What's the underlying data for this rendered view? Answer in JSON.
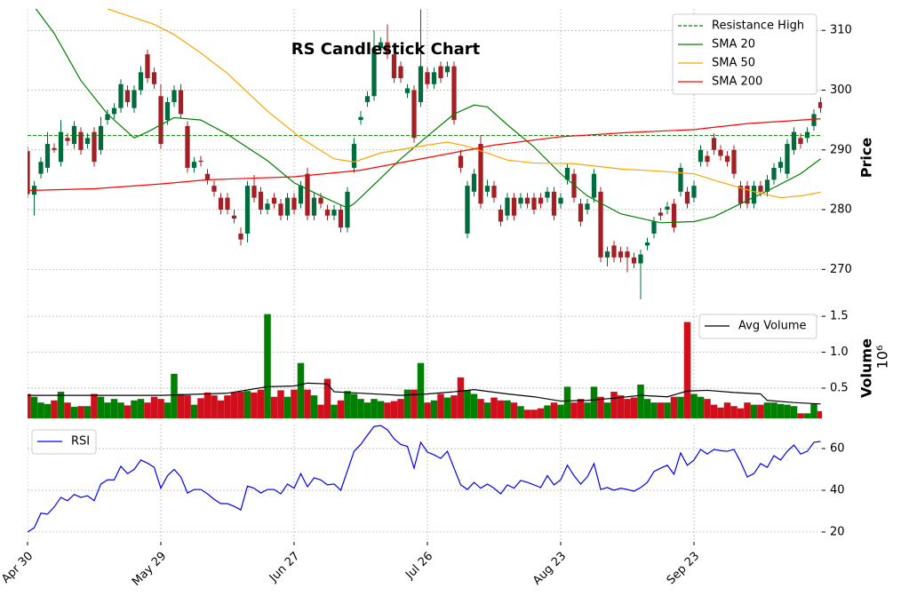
{
  "chart_data": [
    {
      "type": "candlestick",
      "title": "RS Candlestick Chart",
      "ylabel": "Price",
      "xlim": [
        0,
        119.2
      ],
      "ylim": [
        263.8,
        313.6
      ],
      "yticks": [
        270,
        280,
        290,
        300,
        310
      ],
      "grid": true,
      "legend": "upper right",
      "up_color": "#006b3c",
      "down_color": "#a31f24",
      "open": [
        289.8,
        282.5,
        286,
        287,
        290.3,
        288,
        292,
        291,
        293,
        291,
        293,
        290,
        295,
        296,
        297,
        300,
        297,
        300,
        306,
        303,
        299,
        295,
        298,
        300,
        294,
        287,
        288.2,
        286,
        284,
        282,
        282,
        279,
        276,
        276,
        284,
        283,
        280,
        282,
        281,
        279,
        282,
        281,
        286,
        279,
        282,
        280,
        279,
        280,
        277,
        287,
        295,
        298,
        299,
        307,
        308,
        306,
        304,
        299.5,
        300,
        298,
        303,
        301,
        304,
        303,
        304,
        289,
        276,
        283,
        291,
        283,
        284,
        280,
        279,
        282,
        281,
        282,
        282,
        282,
        282,
        283,
        281,
        285,
        286,
        281,
        280,
        282,
        283,
        272,
        274,
        273,
        273,
        272,
        271,
        274,
        276,
        279.5,
        280,
        281,
        283,
        283,
        282,
        288,
        289,
        292,
        290,
        289,
        290,
        284,
        284,
        281,
        284,
        283,
        285,
        287,
        286,
        290,
        292,
        292,
        294,
        298
      ],
      "high": [
        290.6,
        284.8,
        288.8,
        293,
        291.1,
        295,
        292.8,
        294.8,
        293.8,
        292.8,
        293.8,
        295.5,
        296.8,
        297.8,
        301.8,
        300.8,
        300.8,
        304,
        306.8,
        303.8,
        301,
        298.8,
        300.8,
        301,
        294.8,
        288.8,
        289,
        286.8,
        284.8,
        282.8,
        282.8,
        280,
        277,
        284.8,
        285.8,
        283.8,
        281.8,
        282.8,
        281.8,
        282.8,
        282.8,
        284.8,
        287,
        282.8,
        282.8,
        280.8,
        280.8,
        280.8,
        283.8,
        292,
        296.5,
        299.8,
        310,
        308.8,
        311,
        306.8,
        304.8,
        301,
        300.8,
        313.5,
        303.8,
        303.8,
        304.8,
        304.8,
        304.8,
        290,
        284.8,
        286.8,
        292.5,
        285,
        284.8,
        280.8,
        282.8,
        282.8,
        282.8,
        282.8,
        282.8,
        282.8,
        283.8,
        283.8,
        282.8,
        287.8,
        286.8,
        281.8,
        281.8,
        286.8,
        283.8,
        273.8,
        274.8,
        273.8,
        273.8,
        272.8,
        273.3,
        275.3,
        278.8,
        280.3,
        281.3,
        281.8,
        287.8,
        283.8,
        284.8,
        290.8,
        289.8,
        292.8,
        290.8,
        289.8,
        290.8,
        284.8,
        284.8,
        284.8,
        284.8,
        285.8,
        287.8,
        288.8,
        291.8,
        293.8,
        292.8,
        293.8,
        296.8,
        298.8
      ],
      "low": [
        282,
        279,
        285.2,
        286.2,
        289.5,
        287.2,
        290.7,
        290.2,
        289.2,
        290.2,
        287.2,
        289.2,
        294.2,
        295.2,
        296.2,
        297.2,
        296.2,
        299.2,
        301.2,
        300.2,
        290.2,
        294.2,
        297.2,
        295.2,
        286.2,
        286.2,
        287.2,
        284.2,
        282.2,
        279.2,
        279.2,
        277.7,
        274,
        274.5,
        281.2,
        279.2,
        279.2,
        280.2,
        278.2,
        278.2,
        279.2,
        280.2,
        278.2,
        278.2,
        280.2,
        278.2,
        278.2,
        276.2,
        276.2,
        286.2,
        294.2,
        297.2,
        298.2,
        306.2,
        305.2,
        301.2,
        301.2,
        298.7,
        291.2,
        297.2,
        300.2,
        300.2,
        301.2,
        302.2,
        294.2,
        286.2,
        275.2,
        282.2,
        280.2,
        282.2,
        281.2,
        277.2,
        278.2,
        278.2,
        280.2,
        280.2,
        279.2,
        280.2,
        281.2,
        278.2,
        280.2,
        284.2,
        281.2,
        277.2,
        279.2,
        281.2,
        271.2,
        270.5,
        271.2,
        271.2,
        269.5,
        270.2,
        265,
        273.2,
        275.2,
        278.2,
        279.2,
        276.2,
        282.2,
        280.2,
        281.2,
        287.2,
        287.2,
        289.2,
        288.2,
        287.2,
        285.2,
        280.2,
        280.2,
        280.2,
        282.2,
        282.2,
        284.2,
        286.2,
        285.2,
        289.2,
        290.2,
        291.2,
        293.2,
        296.2
      ],
      "close": [
        282.6,
        284,
        288,
        291,
        290,
        293,
        291.5,
        294,
        290,
        292,
        288,
        294,
        296,
        297,
        301,
        298,
        300,
        303,
        302,
        301,
        291,
        298,
        300,
        296,
        287,
        288,
        288,
        285,
        283,
        280,
        280,
        278.5,
        275,
        284,
        282,
        280,
        281,
        281,
        279,
        282,
        280,
        284,
        279,
        282,
        281,
        279,
        280,
        277,
        283,
        291,
        295.5,
        299,
        307,
        308,
        306,
        302,
        302,
        300.3,
        292,
        304,
        301,
        303,
        302,
        304,
        295,
        287,
        284,
        286,
        281,
        284,
        282,
        278,
        282,
        279,
        282,
        281,
        280,
        281,
        283,
        279,
        282,
        287,
        282,
        278,
        281,
        286,
        272,
        273,
        272,
        272,
        272,
        271,
        272.5,
        274.5,
        278,
        279,
        280.5,
        277,
        287,
        281,
        284,
        290,
        288,
        290,
        289,
        288,
        286,
        281,
        281,
        284,
        283,
        285,
        287,
        288,
        291,
        293,
        291,
        293,
        296,
        297
      ],
      "hlines": [
        {
          "name": "Resistance High",
          "value": 292.4,
          "color": "#008000",
          "linestyle": "dashed"
        }
      ],
      "series": [
        {
          "name": "SMA 20",
          "color": "#008000",
          "x": [
            1,
            4,
            8,
            12,
            16,
            18,
            22,
            26,
            30,
            36,
            40,
            44,
            48,
            49,
            52,
            56,
            60,
            64,
            67,
            69,
            72,
            76,
            80,
            84,
            89,
            95,
            100,
            103,
            107,
            112,
            116,
            119
          ],
          "values": [
            314,
            309.5,
            301.6,
            296,
            292,
            293,
            295.4,
            295,
            292.6,
            288.2,
            284.5,
            282.3,
            280.3,
            281,
            284.2,
            288.5,
            292.3,
            296,
            297.5,
            297.2,
            294.2,
            290.5,
            286,
            282.3,
            279.3,
            277.8,
            278,
            278.8,
            281,
            283.7,
            286,
            288.5
          ]
        },
        {
          "name": "SMA 50",
          "color": "#ffa500",
          "x": [
            12,
            19,
            22,
            26,
            30,
            36,
            41,
            46,
            49,
            53,
            60,
            63,
            66,
            72,
            76,
            82,
            89,
            94,
            100,
            104,
            109,
            113,
            116,
            119
          ],
          "values": [
            313.6,
            311,
            309.3,
            306.2,
            302.8,
            296.5,
            292,
            288.5,
            288,
            289.5,
            290.8,
            291.3,
            290.6,
            288.3,
            287.8,
            287.7,
            286.8,
            286.5,
            286,
            284.6,
            283,
            282,
            282.3,
            282.9
          ]
        },
        {
          "name": "SMA 200",
          "color": "#ff0000",
          "x": [
            0,
            10,
            20,
            27,
            40,
            50,
            60,
            70,
            80,
            90,
            100,
            108,
            119
          ],
          "values": [
            283.2,
            283.5,
            284.3,
            285,
            285.5,
            286.6,
            288.7,
            290.8,
            292.2,
            292.9,
            293.4,
            294.4,
            295.2
          ]
        }
      ]
    },
    {
      "type": "bar",
      "ylabel": "Volume",
      "scale_label": "10⁶",
      "xlim": [
        0,
        119.2
      ],
      "ylim": [
        0.08,
        1.6
      ],
      "yticks": [
        {
          "value": 0.5,
          "label": "0.5"
        },
        {
          "value": 1.0,
          "label": "1.0"
        },
        {
          "value": 1.5,
          "label": "1.5"
        }
      ],
      "grid": true,
      "legend": "upper right",
      "up_color": "#008000",
      "down_color": "#d00f1c",
      "values": [
        0.42,
        0.38,
        0.3,
        0.28,
        0.33,
        0.45,
        0.3,
        0.24,
        0.25,
        0.25,
        0.42,
        0.38,
        0.3,
        0.35,
        0.3,
        0.26,
        0.33,
        0.35,
        0.3,
        0.38,
        0.35,
        0.3,
        0.7,
        0.42,
        0.4,
        0.27,
        0.36,
        0.44,
        0.4,
        0.33,
        0.4,
        0.44,
        0.45,
        0.46,
        0.44,
        0.48,
        1.53,
        0.38,
        0.47,
        0.38,
        0.48,
        0.85,
        0.48,
        0.4,
        0.27,
        0.63,
        0.27,
        0.33,
        0.46,
        0.42,
        0.35,
        0.3,
        0.35,
        0.32,
        0.3,
        0.32,
        0.35,
        0.48,
        0.48,
        0.85,
        0.3,
        0.33,
        0.42,
        0.37,
        0.4,
        0.65,
        0.47,
        0.42,
        0.35,
        0.3,
        0.37,
        0.33,
        0.33,
        0.3,
        0.25,
        0.2,
        0.2,
        0.22,
        0.26,
        0.3,
        0.27,
        0.52,
        0.3,
        0.35,
        0.3,
        0.52,
        0.38,
        0.3,
        0.45,
        0.4,
        0.35,
        0.37,
        0.55,
        0.35,
        0.3,
        0.3,
        0.3,
        0.38,
        0.38,
        1.42,
        0.42,
        0.38,
        0.35,
        0.27,
        0.23,
        0.3,
        0.25,
        0.22,
        0.3,
        0.27,
        0.27,
        0.3,
        0.3,
        0.28,
        0.27,
        0.25,
        0.15,
        0.15,
        0.28,
        0.18
      ],
      "series": [
        {
          "name": "Avg Volume",
          "color": "#000000",
          "x": [
            0,
            10,
            20,
            30,
            36,
            40,
            42,
            45,
            46,
            50,
            56,
            60,
            64,
            67,
            72,
            76,
            80,
            84,
            88,
            92,
            96,
            99,
            102,
            106,
            110,
            111,
            115,
            119
          ],
          "values": [
            0.4,
            0.4,
            0.4,
            0.43,
            0.52,
            0.53,
            0.57,
            0.56,
            0.45,
            0.43,
            0.4,
            0.42,
            0.45,
            0.48,
            0.42,
            0.38,
            0.32,
            0.33,
            0.36,
            0.4,
            0.38,
            0.46,
            0.47,
            0.44,
            0.42,
            0.33,
            0.3,
            0.28
          ]
        }
      ]
    },
    {
      "type": "line",
      "xlim": [
        0,
        119.2
      ],
      "ylim": [
        15.3,
        71.5
      ],
      "yticks": [
        20,
        40,
        60
      ],
      "grid": true,
      "legend": "upper left",
      "xticks": [
        {
          "value": 0,
          "label": "Apr 30"
        },
        {
          "value": 20,
          "label": "May 29"
        },
        {
          "value": 40,
          "label": "Jun 27"
        },
        {
          "value": 60,
          "label": "Jul 26"
        },
        {
          "value": 80,
          "label": "Aug 23"
        },
        {
          "value": 100,
          "label": "Sep 23"
        }
      ],
      "series": [
        {
          "name": "RSI",
          "color": "#0000ff",
          "values": [
            20,
            22,
            29,
            28.6,
            32,
            36.6,
            35,
            38,
            36.6,
            37.4,
            35,
            43,
            45,
            45,
            51.5,
            48,
            50,
            54.5,
            53,
            51,
            41,
            47,
            50,
            46.4,
            38.7,
            40.4,
            40.4,
            38.3,
            35.7,
            33.6,
            33.6,
            32.3,
            30.6,
            42,
            41,
            38.7,
            40.4,
            40.4,
            38.3,
            43,
            41,
            48,
            41.7,
            46,
            45,
            42.6,
            43,
            40,
            49.4,
            58.7,
            62,
            66.4,
            70.6,
            71,
            69,
            64.7,
            62,
            61,
            50.6,
            63,
            58.3,
            57,
            55.3,
            58.7,
            50.6,
            42.6,
            40.4,
            43.8,
            41,
            43,
            41,
            38.3,
            42.6,
            41,
            44.7,
            43.8,
            42.6,
            41.3,
            47,
            42.6,
            45,
            52,
            47,
            43,
            46.4,
            52.8,
            40.4,
            41.3,
            40,
            41,
            40.4,
            39.6,
            41.3,
            43.8,
            49,
            50.6,
            52,
            47.7,
            57.9,
            52,
            54.5,
            59.6,
            57.4,
            59.6,
            59,
            58.7,
            59.6,
            53.6,
            46.4,
            48,
            52.8,
            51,
            56.6,
            54.5,
            58.7,
            61.7,
            57.4,
            58.7,
            63,
            63.4
          ]
        }
      ]
    }
  ]
}
